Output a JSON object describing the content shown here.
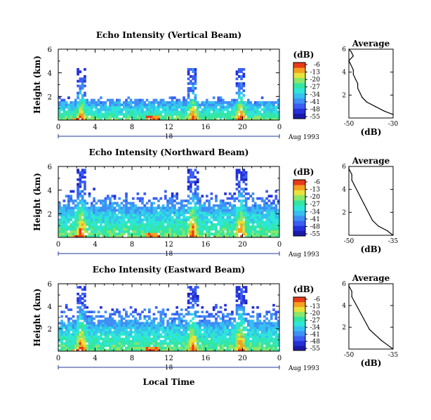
{
  "figure": {
    "xlabel": "Local Time",
    "ylabel": "Height (km)",
    "date_label": "Aug 1993",
    "day_label": "18"
  },
  "colormap": [
    "#1a1aa8",
    "#2430d8",
    "#3a5ef2",
    "#3f8ff5",
    "#35c0f0",
    "#2ee6d8",
    "#35e6a0",
    "#8be66a",
    "#e8e23a",
    "#f5a020",
    "#e83a18"
  ],
  "chart_data": [
    {
      "type": "heatmap",
      "title": "Echo Intensity (Vertical Beam)",
      "xlabel": "Local Time",
      "ylabel": "Height (km)",
      "x_ticks": [
        "0",
        "4",
        "8",
        "12",
        "16",
        "20",
        "0"
      ],
      "y_ticks": [
        "2",
        "4",
        "6"
      ],
      "xlim": [
        0,
        24
      ],
      "ylim": [
        0,
        6
      ],
      "colorbar": {
        "unit": "(dB)",
        "ticks": [
          "-6",
          "-13",
          "-20",
          "-27",
          "-34",
          "-41",
          "-48",
          "-55"
        ],
        "range": [
          -55,
          -6
        ]
      },
      "profile": {
        "title": "Average",
        "xlabel": "(dB)",
        "x_ticks": [
          "-50",
          "-30"
        ],
        "y_ticks": [
          "2",
          "4",
          "6"
        ],
        "xlim": [
          -50,
          -30
        ],
        "points": [
          [
            -30,
            0.3
          ],
          [
            -34,
            0.6
          ],
          [
            -38,
            1.0
          ],
          [
            -42,
            1.4
          ],
          [
            -44,
            1.8
          ],
          [
            -45,
            2.2
          ],
          [
            -46,
            2.6
          ],
          [
            -46,
            3.0
          ],
          [
            -47,
            3.4
          ],
          [
            -48,
            3.8
          ],
          [
            -48,
            4.2
          ],
          [
            -49,
            4.6
          ],
          [
            -50,
            5.0
          ],
          [
            -48,
            5.4
          ],
          [
            -49,
            5.8
          ],
          [
            -50,
            6.0
          ]
        ]
      }
    },
    {
      "type": "heatmap",
      "title": "Echo Intensity (Northward Beam)",
      "xlabel": "Local Time",
      "ylabel": "Height (km)",
      "x_ticks": [
        "0",
        "4",
        "8",
        "12",
        "16",
        "20",
        "0"
      ],
      "y_ticks": [
        "2",
        "4",
        "6"
      ],
      "xlim": [
        0,
        24
      ],
      "ylim": [
        0,
        6
      ],
      "colorbar": {
        "unit": "(dB)",
        "ticks": [
          "-6",
          "-13",
          "-20",
          "-27",
          "-34",
          "-41",
          "-48",
          "-55"
        ],
        "range": [
          -55,
          -6
        ]
      },
      "profile": {
        "title": "Average",
        "xlabel": "(dB)",
        "x_ticks": [
          "-50",
          "-35"
        ],
        "y_ticks": [
          "2",
          "4",
          "6"
        ],
        "xlim": [
          -50,
          -35
        ],
        "points": [
          [
            -35,
            0.0
          ],
          [
            -37,
            0.4
          ],
          [
            -40,
            0.8
          ],
          [
            -42,
            1.3
          ],
          [
            -43,
            1.8
          ],
          [
            -44,
            2.3
          ],
          [
            -45,
            2.8
          ],
          [
            -46,
            3.3
          ],
          [
            -47,
            3.8
          ],
          [
            -48,
            4.3
          ],
          [
            -49,
            4.8
          ],
          [
            -49,
            5.3
          ],
          [
            -50,
            5.8
          ],
          [
            -50,
            6.0
          ]
        ]
      }
    },
    {
      "type": "heatmap",
      "title": "Echo Intensity (Eastward Beam)",
      "xlabel": "Local Time",
      "ylabel": "Height (km)",
      "x_ticks": [
        "0",
        "4",
        "8",
        "12",
        "16",
        "20",
        "0"
      ],
      "y_ticks": [
        "2",
        "4",
        "6"
      ],
      "xlim": [
        0,
        24
      ],
      "ylim": [
        0,
        6
      ],
      "colorbar": {
        "unit": "(dB)",
        "ticks": [
          "-6",
          "-13",
          "-20",
          "-27",
          "-34",
          "-41",
          "-48",
          "-55"
        ],
        "range": [
          -55,
          -6
        ]
      },
      "profile": {
        "title": "Average",
        "xlabel": "(dB)",
        "x_ticks": [
          "-50",
          "-35"
        ],
        "y_ticks": [
          "2",
          "4",
          "6"
        ],
        "xlim": [
          -50,
          -35
        ],
        "points": [
          [
            -35,
            0.0
          ],
          [
            -37,
            0.4
          ],
          [
            -39,
            0.8
          ],
          [
            -41,
            1.3
          ],
          [
            -43,
            1.8
          ],
          [
            -44,
            2.3
          ],
          [
            -45,
            2.8
          ],
          [
            -46,
            3.3
          ],
          [
            -47,
            3.8
          ],
          [
            -48,
            4.3
          ],
          [
            -49,
            4.8
          ],
          [
            -49,
            5.3
          ],
          [
            -50,
            5.8
          ],
          [
            -50,
            6.0
          ]
        ]
      }
    }
  ]
}
